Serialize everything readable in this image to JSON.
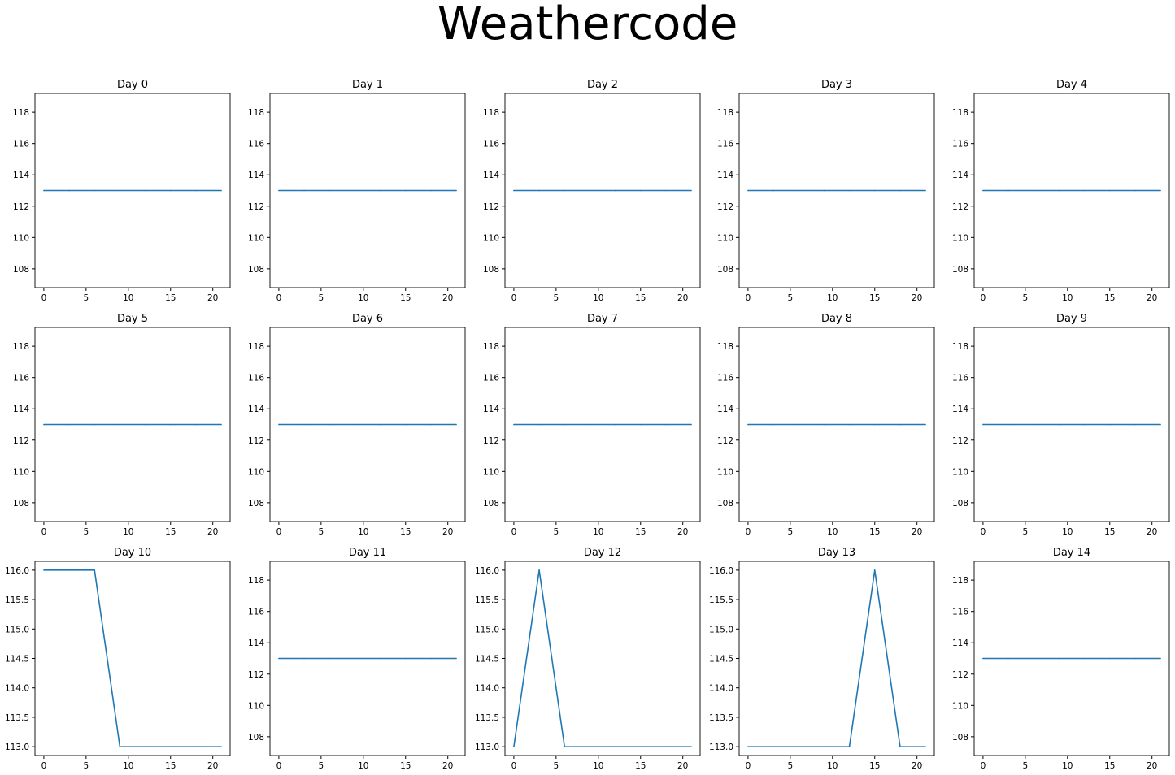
{
  "suptitle": "Weathercode",
  "colors": {
    "line": "#1f77b4",
    "axes": "#000000",
    "background": "#ffffff"
  },
  "chart_data": [
    {
      "type": "line",
      "title": "Day 0",
      "x": [
        0,
        3,
        6,
        9,
        12,
        15,
        18,
        21
      ],
      "y": [
        113,
        113,
        113,
        113,
        113,
        113,
        113,
        113
      ],
      "xticks": [
        0,
        5,
        10,
        15,
        20
      ],
      "yticks": [
        108,
        110,
        112,
        114,
        116,
        118
      ],
      "ylim": [
        106.8,
        119.2
      ]
    },
    {
      "type": "line",
      "title": "Day 1",
      "x": [
        0,
        3,
        6,
        9,
        12,
        15,
        18,
        21
      ],
      "y": [
        113,
        113,
        113,
        113,
        113,
        113,
        113,
        113
      ],
      "xticks": [
        0,
        5,
        10,
        15,
        20
      ],
      "yticks": [
        108,
        110,
        112,
        114,
        116,
        118
      ],
      "ylim": [
        106.8,
        119.2
      ]
    },
    {
      "type": "line",
      "title": "Day 2",
      "x": [
        0,
        3,
        6,
        9,
        12,
        15,
        18,
        21
      ],
      "y": [
        113,
        113,
        113,
        113,
        113,
        113,
        113,
        113
      ],
      "xticks": [
        0,
        5,
        10,
        15,
        20
      ],
      "yticks": [
        108,
        110,
        112,
        114,
        116,
        118
      ],
      "ylim": [
        106.8,
        119.2
      ]
    },
    {
      "type": "line",
      "title": "Day 3",
      "x": [
        0,
        3,
        6,
        9,
        12,
        15,
        18,
        21
      ],
      "y": [
        113,
        113,
        113,
        113,
        113,
        113,
        113,
        113
      ],
      "xticks": [
        0,
        5,
        10,
        15,
        20
      ],
      "yticks": [
        108,
        110,
        112,
        114,
        116,
        118
      ],
      "ylim": [
        106.8,
        119.2
      ]
    },
    {
      "type": "line",
      "title": "Day 4",
      "x": [
        0,
        3,
        6,
        9,
        12,
        15,
        18,
        21
      ],
      "y": [
        113,
        113,
        113,
        113,
        113,
        113,
        113,
        113
      ],
      "xticks": [
        0,
        5,
        10,
        15,
        20
      ],
      "yticks": [
        108,
        110,
        112,
        114,
        116,
        118
      ],
      "ylim": [
        106.8,
        119.2
      ]
    },
    {
      "type": "line",
      "title": "Day 5",
      "x": [
        0,
        3,
        6,
        9,
        12,
        15,
        18,
        21
      ],
      "y": [
        113,
        113,
        113,
        113,
        113,
        113,
        113,
        113
      ],
      "xticks": [
        0,
        5,
        10,
        15,
        20
      ],
      "yticks": [
        108,
        110,
        112,
        114,
        116,
        118
      ],
      "ylim": [
        106.8,
        119.2
      ]
    },
    {
      "type": "line",
      "title": "Day 6",
      "x": [
        0,
        3,
        6,
        9,
        12,
        15,
        18,
        21
      ],
      "y": [
        113,
        113,
        113,
        113,
        113,
        113,
        113,
        113
      ],
      "xticks": [
        0,
        5,
        10,
        15,
        20
      ],
      "yticks": [
        108,
        110,
        112,
        114,
        116,
        118
      ],
      "ylim": [
        106.8,
        119.2
      ]
    },
    {
      "type": "line",
      "title": "Day 7",
      "x": [
        0,
        3,
        6,
        9,
        12,
        15,
        18,
        21
      ],
      "y": [
        113,
        113,
        113,
        113,
        113,
        113,
        113,
        113
      ],
      "xticks": [
        0,
        5,
        10,
        15,
        20
      ],
      "yticks": [
        108,
        110,
        112,
        114,
        116,
        118
      ],
      "ylim": [
        106.8,
        119.2
      ]
    },
    {
      "type": "line",
      "title": "Day 8",
      "x": [
        0,
        3,
        6,
        9,
        12,
        15,
        18,
        21
      ],
      "y": [
        113,
        113,
        113,
        113,
        113,
        113,
        113,
        113
      ],
      "xticks": [
        0,
        5,
        10,
        15,
        20
      ],
      "yticks": [
        108,
        110,
        112,
        114,
        116,
        118
      ],
      "ylim": [
        106.8,
        119.2
      ]
    },
    {
      "type": "line",
      "title": "Day 9",
      "x": [
        0,
        3,
        6,
        9,
        12,
        15,
        18,
        21
      ],
      "y": [
        113,
        113,
        113,
        113,
        113,
        113,
        113,
        113
      ],
      "xticks": [
        0,
        5,
        10,
        15,
        20
      ],
      "yticks": [
        108,
        110,
        112,
        114,
        116,
        118
      ],
      "ylim": [
        106.8,
        119.2
      ]
    },
    {
      "type": "line",
      "title": "Day 10",
      "x": [
        0,
        3,
        6,
        9,
        12,
        15,
        18,
        21
      ],
      "y": [
        116,
        116,
        116,
        113,
        113,
        113,
        113,
        113
      ],
      "xticks": [
        0,
        5,
        10,
        15,
        20
      ],
      "yticks": [
        113.0,
        113.5,
        114.0,
        114.5,
        115.0,
        115.5,
        116.0
      ],
      "ylim": [
        112.85,
        116.15
      ]
    },
    {
      "type": "line",
      "title": "Day 11",
      "x": [
        0,
        3,
        6,
        9,
        12,
        15,
        18,
        21
      ],
      "y": [
        113,
        113,
        113,
        113,
        113,
        113,
        113,
        113
      ],
      "xticks": [
        0,
        5,
        10,
        15,
        20
      ],
      "yticks": [
        108,
        110,
        112,
        114,
        116,
        118
      ],
      "ylim": [
        106.8,
        119.2
      ]
    },
    {
      "type": "line",
      "title": "Day 12",
      "x": [
        0,
        3,
        6,
        9,
        12,
        15,
        18,
        21
      ],
      "y": [
        113,
        116,
        113,
        113,
        113,
        113,
        113,
        113
      ],
      "xticks": [
        0,
        5,
        10,
        15,
        20
      ],
      "yticks": [
        113.0,
        113.5,
        114.0,
        114.5,
        115.0,
        115.5,
        116.0
      ],
      "ylim": [
        112.85,
        116.15
      ]
    },
    {
      "type": "line",
      "title": "Day 13",
      "x": [
        0,
        3,
        6,
        9,
        12,
        15,
        18,
        21
      ],
      "y": [
        113,
        113,
        113,
        113,
        113,
        116,
        113,
        113
      ],
      "xticks": [
        0,
        5,
        10,
        15,
        20
      ],
      "yticks": [
        113.0,
        113.5,
        114.0,
        114.5,
        115.0,
        115.5,
        116.0
      ],
      "ylim": [
        112.85,
        116.15
      ]
    },
    {
      "type": "line",
      "title": "Day 14",
      "x": [
        0,
        3,
        6,
        9,
        12,
        15,
        18,
        21
      ],
      "y": [
        113,
        113,
        113,
        113,
        113,
        113,
        113,
        113
      ],
      "xticks": [
        0,
        5,
        10,
        15,
        20
      ],
      "yticks": [
        108,
        110,
        112,
        114,
        116,
        118
      ],
      "ylim": [
        106.8,
        119.2
      ]
    }
  ]
}
